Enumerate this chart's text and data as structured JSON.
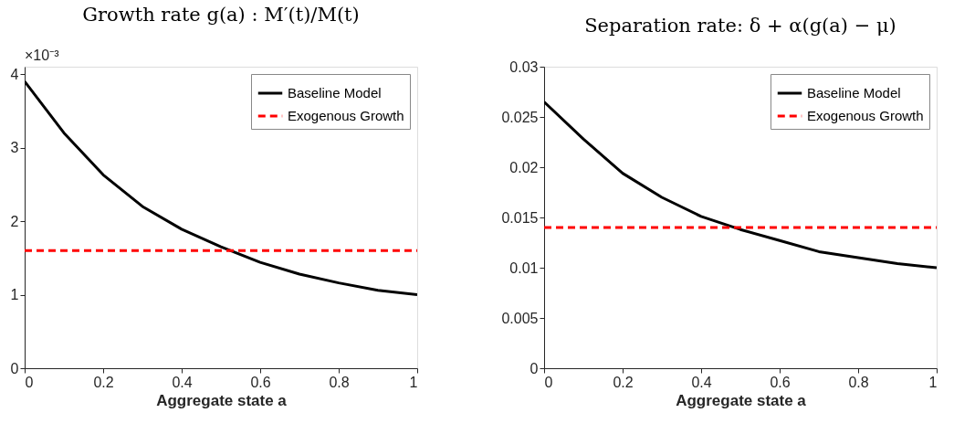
{
  "chart_data": [
    {
      "type": "line",
      "title": "Growth rate g(a) : M′(t)/M(t)",
      "xlabel": "Aggregate state a",
      "annotations": [
        "×10⁻³"
      ],
      "legend": "top right",
      "xlim": [
        0,
        1
      ],
      "xticks": [
        0,
        0.2,
        0.4,
        0.6,
        0.8,
        1
      ],
      "ylim": [
        0,
        4.1
      ],
      "yticks": [
        0,
        1,
        2,
        3,
        4
      ],
      "series": [
        {
          "name": "Baseline Model",
          "color": "#000000",
          "line_style": "solid",
          "x": [
            0,
            0.1,
            0.2,
            0.3,
            0.4,
            0.5,
            0.6,
            0.7,
            0.8,
            0.9,
            1
          ],
          "values": [
            3.9,
            3.2,
            2.63,
            2.2,
            1.89,
            1.65,
            1.44,
            1.28,
            1.16,
            1.06,
            1.0
          ]
        },
        {
          "name": "Exogenous Growth",
          "color": "#ff0000",
          "line_style": "dashed",
          "x": [
            0,
            1
          ],
          "values": [
            1.6,
            1.6
          ]
        }
      ]
    },
    {
      "type": "line",
      "title": "Separation rate: δ + α(g(a) − μ)",
      "xlabel": "Aggregate state a",
      "legend": "top right",
      "xlim": [
        0,
        1
      ],
      "xticks": [
        0,
        0.2,
        0.4,
        0.6,
        0.8,
        1
      ],
      "ylim": [
        0,
        0.03
      ],
      "yticks": [
        0,
        0.005,
        0.01,
        0.015,
        0.02,
        0.025,
        0.03
      ],
      "series": [
        {
          "name": "Baseline Model",
          "color": "#000000",
          "line_style": "solid",
          "x": [
            0,
            0.1,
            0.2,
            0.3,
            0.4,
            0.5,
            0.6,
            0.7,
            0.8,
            0.9,
            1
          ],
          "values": [
            0.0265,
            0.0228,
            0.0194,
            0.017,
            0.0151,
            0.0138,
            0.0127,
            0.0116,
            0.011,
            0.0104,
            0.01
          ]
        },
        {
          "name": "Exogenous Growth",
          "color": "#ff0000",
          "line_style": "dashed",
          "x": [
            0,
            1
          ],
          "values": [
            0.014,
            0.014
          ]
        }
      ]
    }
  ]
}
